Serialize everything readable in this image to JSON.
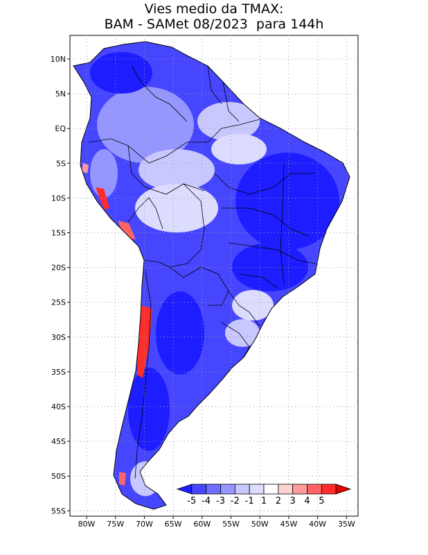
{
  "title": {
    "line1": "Vies medio da TMAX:",
    "line2": "BAM - SAMet 08/2023  para 144h"
  },
  "map": {
    "lat_ticks": [
      "10N",
      "5N",
      "EQ",
      "5S",
      "10S",
      "15S",
      "20S",
      "25S",
      "30S",
      "35S",
      "40S",
      "45S",
      "50S",
      "55S"
    ],
    "lon_ticks": [
      "80W",
      "75W",
      "70W",
      "65W",
      "60W",
      "55W",
      "50W",
      "45W",
      "40W",
      "35W"
    ],
    "grid": "dotted"
  },
  "colorbar": {
    "labels": [
      "-5",
      "-4",
      "-3",
      "-2",
      "-1",
      "1",
      "2",
      "3",
      "4",
      "5"
    ],
    "colors": [
      "#1d1dff",
      "#4646ff",
      "#6e6eff",
      "#9696ff",
      "#c8c8ff",
      "#dcdcff",
      "#ffffff",
      "#ffd2d2",
      "#ff9b9b",
      "#ff6464",
      "#ff2c2c",
      "#e60000"
    ]
  },
  "colors": {
    "strong_cold": "#1d1dff",
    "medium_cold": "#6e6eff",
    "light_cold": "#c8c8ff",
    "warm": "#ff2c2c"
  }
}
